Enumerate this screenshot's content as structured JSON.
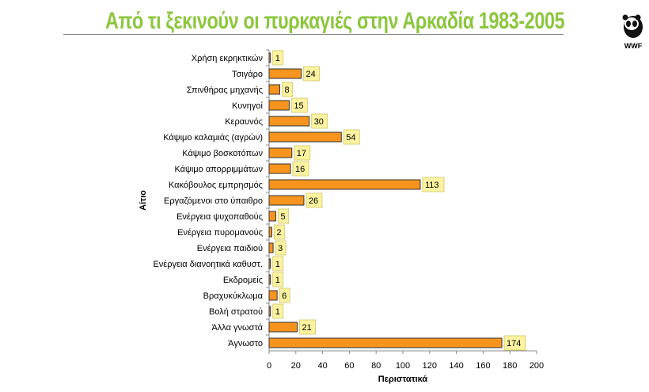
{
  "title": "Από τι ξεκινούν οι πυρκαγιές στην Αρκαδία 1983-2005",
  "logo_text": "WWF",
  "chart_data": {
    "type": "bar",
    "orientation": "horizontal",
    "categories": [
      "Χρήση εκρηκτικών",
      "Τσιγάρο",
      "Σπινθήρας μηχανής",
      "Κυνηγοί",
      "Κεραυνός",
      "Κάψιμο καλαμιάς (αγρών)",
      "Κάψιμο βοσκοτόπων",
      "Κάψιμο απορριμμάτων",
      "Κακόβουλος εμπρησμός",
      "Εργαζόμενοι στο ύπαιθρο",
      "Ενέργεια ψυχοπαθούς",
      "Ενέργεια πυρομανούς",
      "Ενέργεια παιδιού",
      "Ενέργεια διανοητικά καθυστ.",
      "Εκδρομείς",
      "Βραχυκύκλωμα",
      "Βολή στρατού",
      "Άλλα γνωστά",
      "Άγνωστο"
    ],
    "values": [
      1,
      24,
      8,
      15,
      30,
      54,
      17,
      16,
      113,
      26,
      5,
      2,
      3,
      1,
      1,
      6,
      1,
      21,
      174
    ],
    "xlabel": "Περιστατικά",
    "ylabel": "Αίτιο",
    "xlim": [
      0,
      200
    ],
    "xticks": [
      0,
      20,
      40,
      60,
      80,
      100,
      120,
      140,
      160,
      180,
      200
    ],
    "grid": false,
    "bar_color": "#f7941d",
    "label_bg": "#fbf3a0"
  }
}
